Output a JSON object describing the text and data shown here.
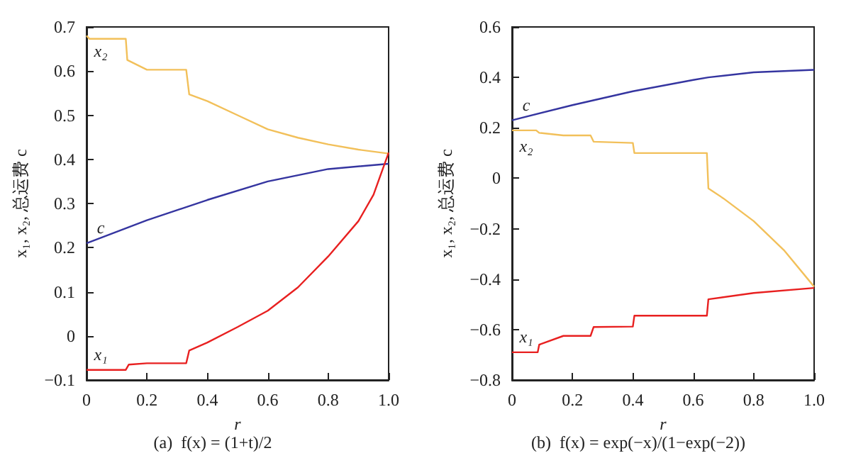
{
  "chart_data": [
    {
      "type": "line",
      "title": "(a)  f(x) = (1+t)/2",
      "xlabel": "r",
      "ylabel": "x₁, x₂, 总运费 c",
      "xlim": [
        0,
        1
      ],
      "ylim": [
        -0.1,
        0.7
      ],
      "xticks": [
        0,
        0.2,
        0.4,
        0.6,
        0.8,
        {
          "value": 1,
          "label": "1.0"
        }
      ],
      "yticks": [
        {
          "value": -0.1,
          "label": "−0.1"
        },
        0,
        0.1,
        0.2,
        0.3,
        0.4,
        0.5,
        0.6,
        0.7
      ],
      "grid": false,
      "legend": false,
      "series": [
        {
          "name": "x₂",
          "color": "#f2c05a",
          "x": [
            0,
            0.01,
            0.13,
            0.135,
            0.2,
            0.33,
            0.34,
            0.4,
            0.5,
            0.6,
            0.7,
            0.8,
            0.9,
            1.0
          ],
          "values": [
            0.68,
            0.673,
            0.673,
            0.625,
            0.603,
            0.603,
            0.547,
            0.532,
            0.5,
            0.468,
            0.449,
            0.434,
            0.422,
            0.413
          ]
        },
        {
          "name": "c",
          "color": "#3535a0",
          "x": [
            0,
            0.2,
            0.4,
            0.6,
            0.8,
            1.0
          ],
          "values": [
            0.21,
            0.262,
            0.308,
            0.35,
            0.378,
            0.39
          ]
        },
        {
          "name": "x₁",
          "color": "#e82020",
          "x": [
            0,
            0.13,
            0.14,
            0.2,
            0.33,
            0.34,
            0.4,
            0.5,
            0.6,
            0.7,
            0.8,
            0.9,
            0.95,
            1.0
          ],
          "values": [
            -0.077,
            -0.077,
            -0.065,
            -0.062,
            -0.062,
            -0.033,
            -0.015,
            0.02,
            0.057,
            0.11,
            0.18,
            0.26,
            0.32,
            0.415
          ]
        }
      ]
    },
    {
      "type": "line",
      "title": "(b)  f(x) = exp(−x)/(1−exp(−2))",
      "xlabel": "r",
      "ylabel": "x₁, x₂, 总运费 c",
      "xlim": [
        0,
        1
      ],
      "ylim": [
        -0.8,
        0.6
      ],
      "xticks": [
        0,
        0.2,
        0.4,
        0.6,
        0.8,
        {
          "value": 1,
          "label": "1.0"
        }
      ],
      "yticks": [
        {
          "value": -0.8,
          "label": "−0.8"
        },
        {
          "value": -0.6,
          "label": "−0.6"
        },
        {
          "value": -0.4,
          "label": "−0.4"
        },
        {
          "value": -0.2,
          "label": "−0.2"
        },
        0,
        0.2,
        0.4,
        0.6
      ],
      "grid": false,
      "legend": false,
      "series": [
        {
          "name": "c",
          "color": "#3535a0",
          "x": [
            0,
            0.2,
            0.4,
            0.6,
            0.65,
            0.8,
            1.0
          ],
          "values": [
            0.23,
            0.29,
            0.345,
            0.39,
            0.4,
            0.42,
            0.43
          ]
        },
        {
          "name": "x₂",
          "color": "#f2c05a",
          "x": [
            0,
            0.08,
            0.09,
            0.17,
            0.26,
            0.27,
            0.4,
            0.405,
            0.645,
            0.65,
            0.7,
            0.8,
            0.9,
            1.0
          ],
          "values": [
            0.19,
            0.19,
            0.18,
            0.17,
            0.17,
            0.145,
            0.14,
            0.1,
            0.1,
            -0.04,
            -0.08,
            -0.17,
            -0.285,
            -0.43
          ]
        },
        {
          "name": "x₁",
          "color": "#e82020",
          "x": [
            0,
            0.085,
            0.09,
            0.17,
            0.26,
            0.27,
            0.4,
            0.405,
            0.645,
            0.65,
            0.8,
            1.0
          ],
          "values": [
            -0.69,
            -0.69,
            -0.66,
            -0.625,
            -0.625,
            -0.59,
            -0.588,
            -0.545,
            -0.545,
            -0.48,
            -0.455,
            -0.435
          ]
        }
      ]
    }
  ]
}
